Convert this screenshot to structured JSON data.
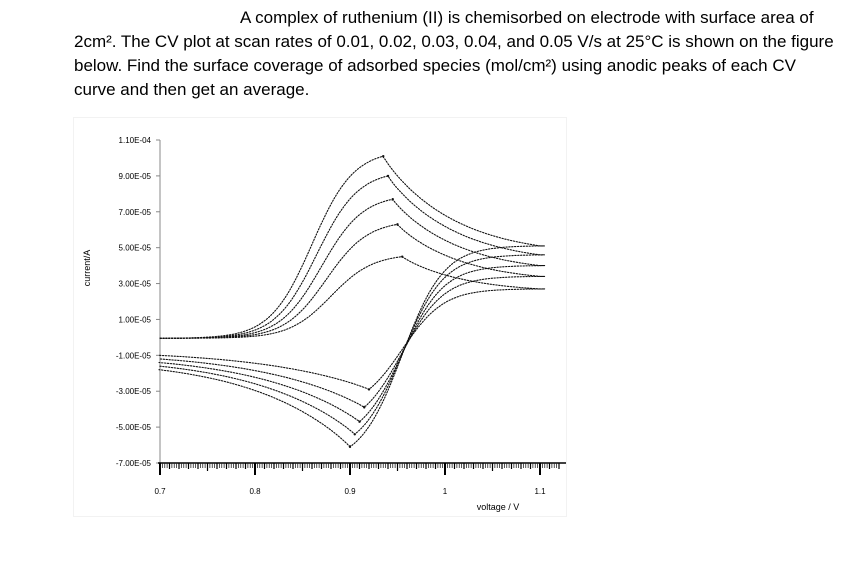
{
  "problem": {
    "text": "A complex of ruthenium (II) is chemisorbed on electrode with surface area of 2cm². The CV plot at scan rates of 0.01, 0.02, 0.03, 0.04, and 0.05 V/s at 25°C is shown on the figure below. Find the surface coverage of adsorbed species (mol/cm²) using anodic peaks of each CV curve and then get an average."
  },
  "chart_data": {
    "type": "line",
    "title": "",
    "xlabel": "voltage / V",
    "ylabel": "current/A",
    "xlim": [
      0.7,
      1.12
    ],
    "ylim": [
      -7e-05,
      0.000115
    ],
    "x_ticks": [
      "0.7",
      "0.8",
      "0.9",
      "1",
      "1.1"
    ],
    "x_tick_values": [
      0.7,
      0.8,
      0.9,
      1.0,
      1.1
    ],
    "y_ticks": [
      "1.10E-04",
      "9.00E-05",
      "7.00E-05",
      "5.00E-05",
      "3.00E-05",
      "1.00E-05",
      "-1.00E-05",
      "-3.00E-05",
      "-5.00E-05",
      "-7.00E-05"
    ],
    "y_tick_values": [
      0.00011,
      9e-05,
      7e-05,
      5e-05,
      3e-05,
      1e-05,
      -1e-05,
      -3e-05,
      -5e-05,
      -7e-05
    ],
    "E0": 0.94,
    "E_start": 0.7,
    "E_switch": 1.1,
    "grid": false,
    "line_style": "dotted",
    "series": [
      {
        "scan_rate": 0.01,
        "anodic_peak": {
          "x": 0.955,
          "y": 4.5e-05
        },
        "cathodic_peak": {
          "x": 0.92,
          "y": -2.9e-05
        },
        "anodic_end": 2.7e-05,
        "cathodic_start": -1e-05
      },
      {
        "scan_rate": 0.02,
        "anodic_peak": {
          "x": 0.95,
          "y": 6.3e-05
        },
        "cathodic_peak": {
          "x": 0.915,
          "y": -3.9e-05
        },
        "anodic_end": 3.4e-05,
        "cathodic_start": -1.2e-05
      },
      {
        "scan_rate": 0.03,
        "anodic_peak": {
          "x": 0.945,
          "y": 7.7e-05
        },
        "cathodic_peak": {
          "x": 0.91,
          "y": -4.7e-05
        },
        "anodic_end": 4e-05,
        "cathodic_start": -1.4e-05
      },
      {
        "scan_rate": 0.04,
        "anodic_peak": {
          "x": 0.94,
          "y": 9e-05
        },
        "cathodic_peak": {
          "x": 0.905,
          "y": -5.4e-05
        },
        "anodic_end": 4.6e-05,
        "cathodic_start": -1.6e-05
      },
      {
        "scan_rate": 0.05,
        "anodic_peak": {
          "x": 0.935,
          "y": 0.000101
        },
        "cathodic_peak": {
          "x": 0.9,
          "y": -6.1e-05
        },
        "anodic_end": 5.1e-05,
        "cathodic_start": -1.8e-05
      }
    ]
  }
}
